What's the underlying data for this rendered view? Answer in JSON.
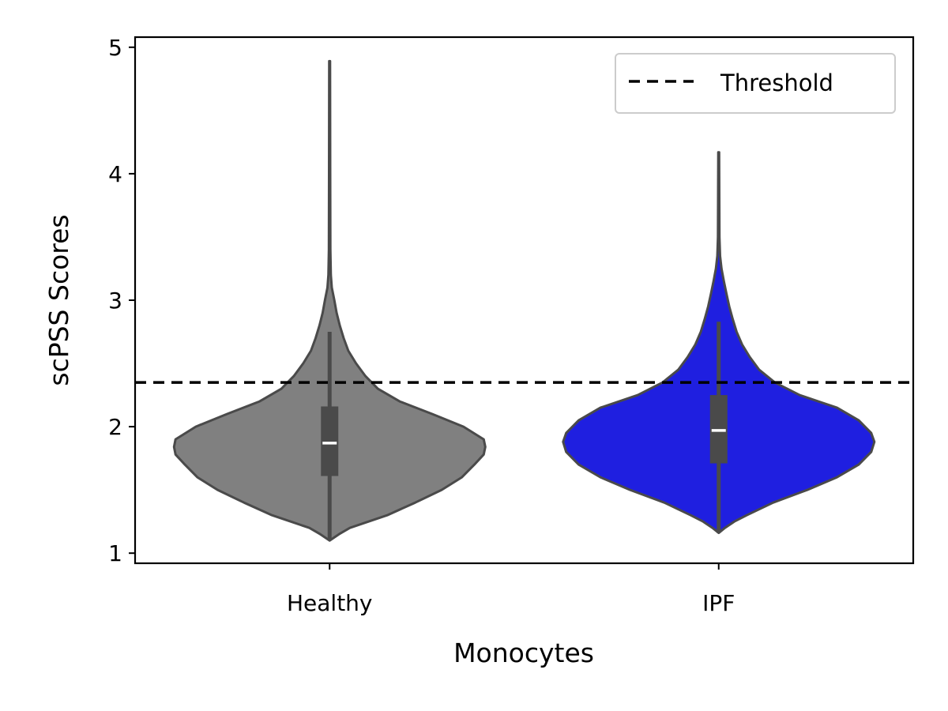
{
  "chart_data": {
    "type": "violin",
    "title": "",
    "xlabel": "Monocytes",
    "ylabel": "scPSS Scores",
    "categories": [
      "Healthy",
      "IPF"
    ],
    "ylim": [
      0.92,
      5.08
    ],
    "yticks": [
      1,
      2,
      3,
      4,
      5
    ],
    "grid": false,
    "legend_position": "top-right",
    "threshold": {
      "label": "Threshold",
      "value": 2.35,
      "style": "dashed",
      "color": "#000000"
    },
    "series": [
      {
        "category": "Healthy",
        "color": "#808080",
        "min": 1.1,
        "q1": 1.61,
        "median": 1.87,
        "q3": 2.16,
        "whisker_high": 2.75,
        "max": 4.89,
        "density": [
          [
            1.1,
            0.0
          ],
          [
            1.15,
            0.06
          ],
          [
            1.2,
            0.13
          ],
          [
            1.25,
            0.25
          ],
          [
            1.3,
            0.37
          ],
          [
            1.4,
            0.55
          ],
          [
            1.5,
            0.72
          ],
          [
            1.6,
            0.85
          ],
          [
            1.7,
            0.93
          ],
          [
            1.78,
            0.99
          ],
          [
            1.84,
            1.0
          ],
          [
            1.9,
            0.99
          ],
          [
            2.0,
            0.86
          ],
          [
            2.1,
            0.66
          ],
          [
            2.2,
            0.45
          ],
          [
            2.3,
            0.31
          ],
          [
            2.4,
            0.23
          ],
          [
            2.5,
            0.17
          ],
          [
            2.6,
            0.12
          ],
          [
            2.7,
            0.09
          ],
          [
            2.8,
            0.065
          ],
          [
            2.9,
            0.045
          ],
          [
            3.0,
            0.03
          ],
          [
            3.05,
            0.022
          ],
          [
            3.1,
            0.014
          ],
          [
            3.2,
            0.008
          ],
          [
            3.4,
            0.005
          ],
          [
            4.0,
            0.004
          ],
          [
            4.89,
            0.003
          ]
        ]
      },
      {
        "category": "IPF",
        "color": "#1f1fe0",
        "min": 1.16,
        "q1": 1.71,
        "median": 1.97,
        "q3": 2.25,
        "whisker_high": 2.83,
        "max": 4.17,
        "density": [
          [
            1.16,
            0.0
          ],
          [
            1.2,
            0.04
          ],
          [
            1.25,
            0.1
          ],
          [
            1.3,
            0.18
          ],
          [
            1.4,
            0.35
          ],
          [
            1.5,
            0.57
          ],
          [
            1.6,
            0.76
          ],
          [
            1.7,
            0.9
          ],
          [
            1.8,
            0.98
          ],
          [
            1.88,
            1.0
          ],
          [
            1.95,
            0.98
          ],
          [
            2.05,
            0.9
          ],
          [
            2.15,
            0.76
          ],
          [
            2.25,
            0.52
          ],
          [
            2.35,
            0.36
          ],
          [
            2.45,
            0.26
          ],
          [
            2.55,
            0.2
          ],
          [
            2.65,
            0.15
          ],
          [
            2.75,
            0.115
          ],
          [
            2.85,
            0.09
          ],
          [
            2.95,
            0.068
          ],
          [
            3.05,
            0.05
          ],
          [
            3.15,
            0.033
          ],
          [
            3.25,
            0.018
          ],
          [
            3.35,
            0.009
          ],
          [
            3.5,
            0.005
          ],
          [
            4.17,
            0.003
          ]
        ]
      }
    ]
  }
}
